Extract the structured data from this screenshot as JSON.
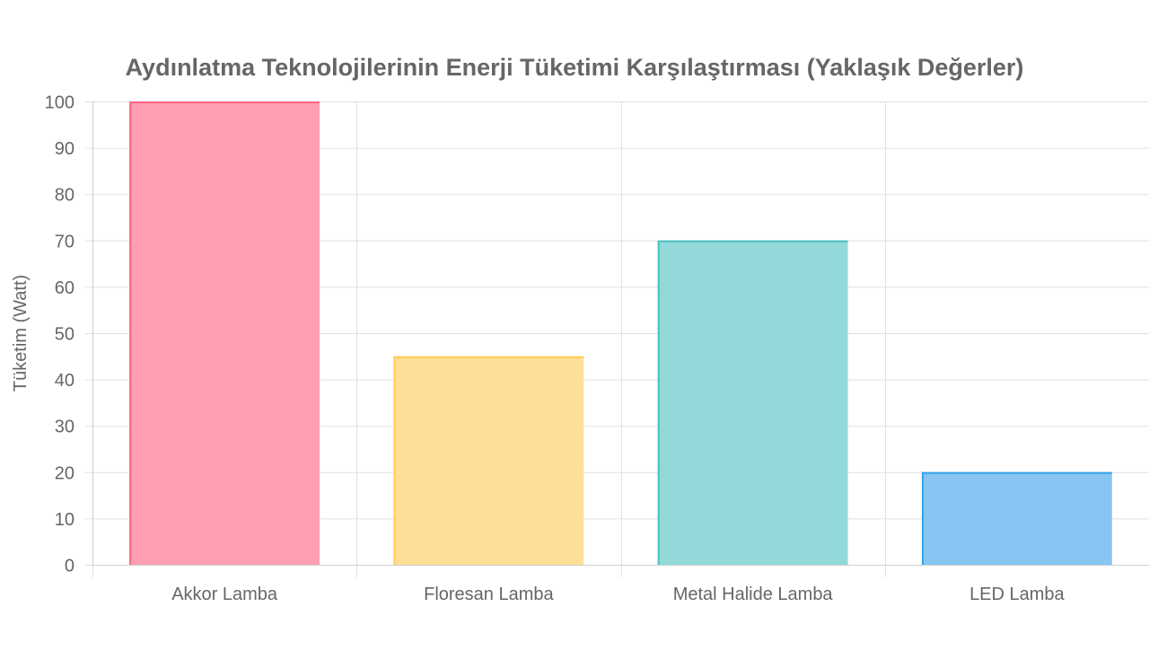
{
  "chart_data": {
    "type": "bar",
    "title": "Aydınlatma Teknolojilerinin Enerji Tüketimi Karşılaştırması (Yaklaşık Değerler)",
    "xlabel": "",
    "ylabel": "Tüketim (Watt)",
    "categories": [
      "Akkor Lamba",
      "Floresan Lamba",
      "Metal Halide Lamba",
      "LED Lamba"
    ],
    "values": [
      100,
      45,
      70,
      20
    ],
    "ylim": [
      0,
      100
    ],
    "yticks": [
      0,
      10,
      20,
      30,
      40,
      50,
      60,
      70,
      80,
      90,
      100
    ],
    "grid": true,
    "legend": "none",
    "colors": {
      "fills": [
        "#ff9fb2",
        "#ffdf98",
        "#93d9da",
        "#88c5f3"
      ],
      "borders": [
        "#ff6384",
        "#ffcd56",
        "#4bc0c0",
        "#36a2eb"
      ],
      "grid": "#e1e1e1",
      "text": "#666666"
    }
  }
}
